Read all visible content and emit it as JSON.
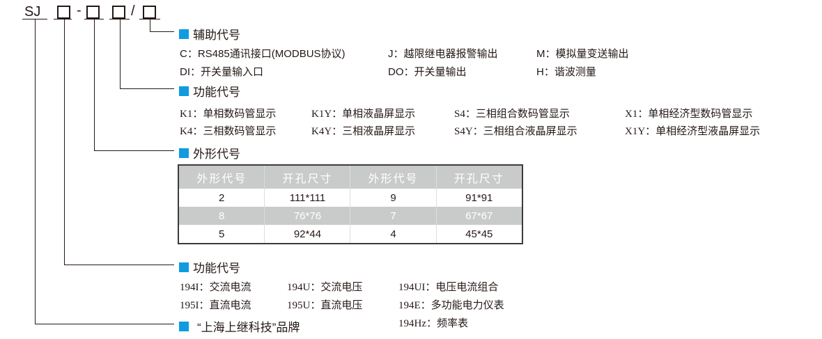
{
  "model": {
    "prefix": "SJ",
    "dash": "-",
    "slash": "/"
  },
  "accent_color": "#0f9be0",
  "aux": {
    "title": "辅助代号",
    "items": [
      "C：RS485通讯接口(MODBUS协议)",
      "J：越限继电器报警输出",
      "M：模拟量变送输出",
      "DI：开关量输入口",
      "DO：开关量输出",
      "H：谐波测量"
    ]
  },
  "display": {
    "title": "功能代号",
    "items": [
      "K1：单相数码管显示",
      "K1Y：单相液晶屏显示",
      "S4：三相组合数码管显示",
      "X1：单相经济型数码管显示",
      "K4：三相数码管显示",
      "K4Y：三相液晶屏显示",
      "S4Y：三相组合液晶屏显示",
      "X1Y：单相经济型液晶屏显示"
    ]
  },
  "shape": {
    "title": "外形代号",
    "headers": [
      "外形代号",
      "开孔尺寸",
      "外形代号",
      "开孔尺寸"
    ],
    "rows": [
      [
        "2",
        "111*111",
        "9",
        "91*91"
      ],
      [
        "8",
        "76*76",
        "7",
        "67*67"
      ],
      [
        "5",
        "92*44",
        "4",
        "45*45"
      ]
    ]
  },
  "function": {
    "title": "功能代号",
    "items": [
      "194I：交流电流",
      "194U：交流电压",
      "194UI：电压电流组合",
      "195I：直流电流",
      "195U：直流电压",
      "194E：多功能电力仪表",
      "194Hz：频率表"
    ]
  },
  "brand": {
    "title": "“上海上继科技”品牌"
  }
}
